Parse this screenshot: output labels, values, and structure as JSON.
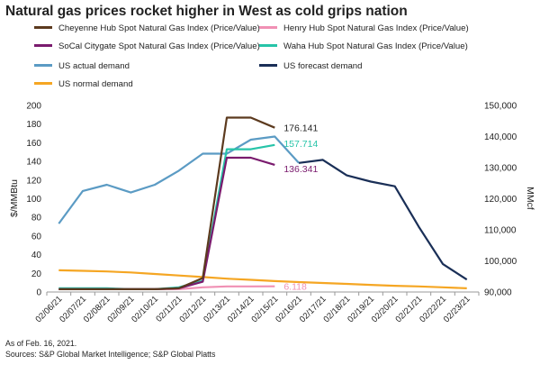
{
  "title": "Natural gas prices rocket higher in West as cold grips nation",
  "footnotes": [
    "As of Feb. 16, 2021.",
    "Sources: S&P Global Market Intelligence; S&P Global Platts"
  ],
  "chart_data": {
    "type": "line",
    "title": "Natural gas prices rocket higher in West as cold grips nation",
    "x": [
      "02/06/21",
      "02/07/21",
      "02/08/21",
      "02/09/21",
      "02/10/21",
      "02/11/21",
      "02/12/21",
      "02/13/21",
      "02/14/21",
      "02/15/21",
      "02/16/21",
      "02/17/21",
      "02/18/21",
      "02/19/21",
      "02/20/21",
      "02/21/21",
      "02/22/21",
      "02/23/21"
    ],
    "ylabel_left": "$/MMBtu",
    "ylabel_right": "MMcf",
    "ylim_left": [
      0,
      200
    ],
    "yticks_left": [
      "0",
      "20",
      "40",
      "60",
      "80",
      "100",
      "120",
      "140",
      "160",
      "180",
      "200"
    ],
    "ylim_right": [
      90000,
      150000
    ],
    "yticks_right": [
      "90,000",
      "100,000",
      "110,000",
      "120,000",
      "130,000",
      "140,000",
      "150,000"
    ],
    "grid": false,
    "legend_position": "top",
    "series": [
      {
        "name": "Cheyenne Hub Spot Natural Gas Index (Price/Value)",
        "axis": "left",
        "color": "#5c3a1e",
        "values": [
          3,
          3,
          3,
          3,
          3,
          4,
          15,
          187,
          187,
          176.141,
          null,
          null,
          null,
          null,
          null,
          null,
          null,
          null
        ],
        "end_label": "176.141"
      },
      {
        "name": "Henry Hub Spot Natural Gas Index (Price/Value)",
        "axis": "left",
        "color": "#f090b4",
        "values": [
          3,
          3,
          3,
          3,
          3,
          3,
          5,
          6,
          6,
          6.118,
          null,
          null,
          null,
          null,
          null,
          null,
          null,
          null
        ],
        "end_label": "6.118"
      },
      {
        "name": "SoCal Citygate Spot Natural Gas Index (Price/Value)",
        "axis": "left",
        "color": "#7a1b6e",
        "values": [
          3,
          3,
          3,
          3,
          3,
          4,
          11,
          144,
          144,
          136.341,
          null,
          null,
          null,
          null,
          null,
          null,
          null,
          null
        ],
        "end_label": "136.341"
      },
      {
        "name": "Waha Hub Spot Natural Gas Index (Price/Value)",
        "axis": "left",
        "color": "#26c4a8",
        "values": [
          4,
          4,
          4,
          3,
          3,
          5,
          12,
          153,
          153,
          157.714,
          null,
          null,
          null,
          null,
          null,
          null,
          null,
          null
        ],
        "end_label": "157.714"
      },
      {
        "name": "US actual demand",
        "axis": "right",
        "color": "#5b9bc4",
        "values": [
          112000,
          122500,
          124500,
          122000,
          124500,
          129000,
          134500,
          134500,
          139000,
          140000,
          131500,
          null,
          null,
          null,
          null,
          null,
          null,
          null
        ]
      },
      {
        "name": "US forecast demand",
        "axis": "right",
        "color": "#1a2f57",
        "values": [
          null,
          null,
          null,
          null,
          null,
          null,
          null,
          null,
          null,
          null,
          131500,
          132500,
          127500,
          125500,
          124000,
          111000,
          99000,
          94000
        ]
      },
      {
        "name": "US normal demand",
        "axis": "right",
        "color": "#f5a623",
        "values": [
          97000,
          96800,
          96600,
          96300,
          95800,
          95300,
          94800,
          94300,
          93900,
          93500,
          93200,
          92900,
          92600,
          92300,
          92000,
          91800,
          91500,
          91200
        ]
      }
    ]
  }
}
